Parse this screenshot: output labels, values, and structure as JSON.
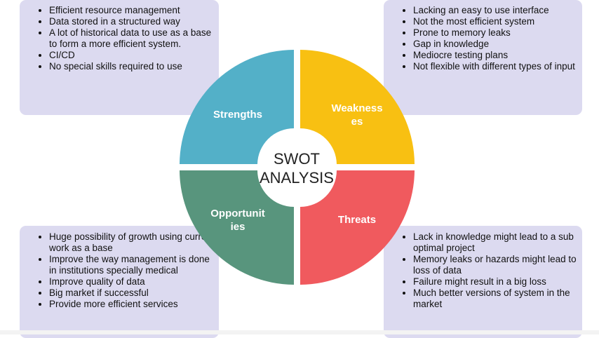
{
  "center": {
    "line1": "SWOT",
    "line2": "ANALYSIS"
  },
  "quadrants": {
    "strengths": {
      "label": "Strengths",
      "color": "#53b0c8"
    },
    "weaknesses": {
      "label_line1": "Weakness",
      "label_line2": "es",
      "color": "#f8c012"
    },
    "opportunities": {
      "label_line1": "Opportunit",
      "label_line2": "ies",
      "color": "#58957d"
    },
    "threats": {
      "label": "Threats",
      "color": "#f05a5e"
    }
  },
  "boxes": {
    "strengths": [
      "Efficient resource management",
      "Data stored in a structured way",
      "A lot of historical data to use as a base to form a more efficient system.",
      "CI/CD",
      "No special skills required to use"
    ],
    "weaknesses": [
      "Lacking an easy to use interface",
      "Not the most efficient system",
      "Prone to memory leaks",
      "Gap in knowledge",
      "Mediocre testing plans",
      "Not flexible with different types of input"
    ],
    "opportunities": [
      "Huge possibility of growth using current work as a base",
      "Improve the way management is done in institutions specially medical",
      "Improve quality of data",
      "Big market if successful",
      "Provide more efficient services"
    ],
    "threats": [
      "Lack in knowledge might lead to a sub optimal project",
      "Memory leaks or hazards might lead to loss of data",
      "Failure might result in a big loss",
      "Much better versions of system in the market"
    ]
  }
}
